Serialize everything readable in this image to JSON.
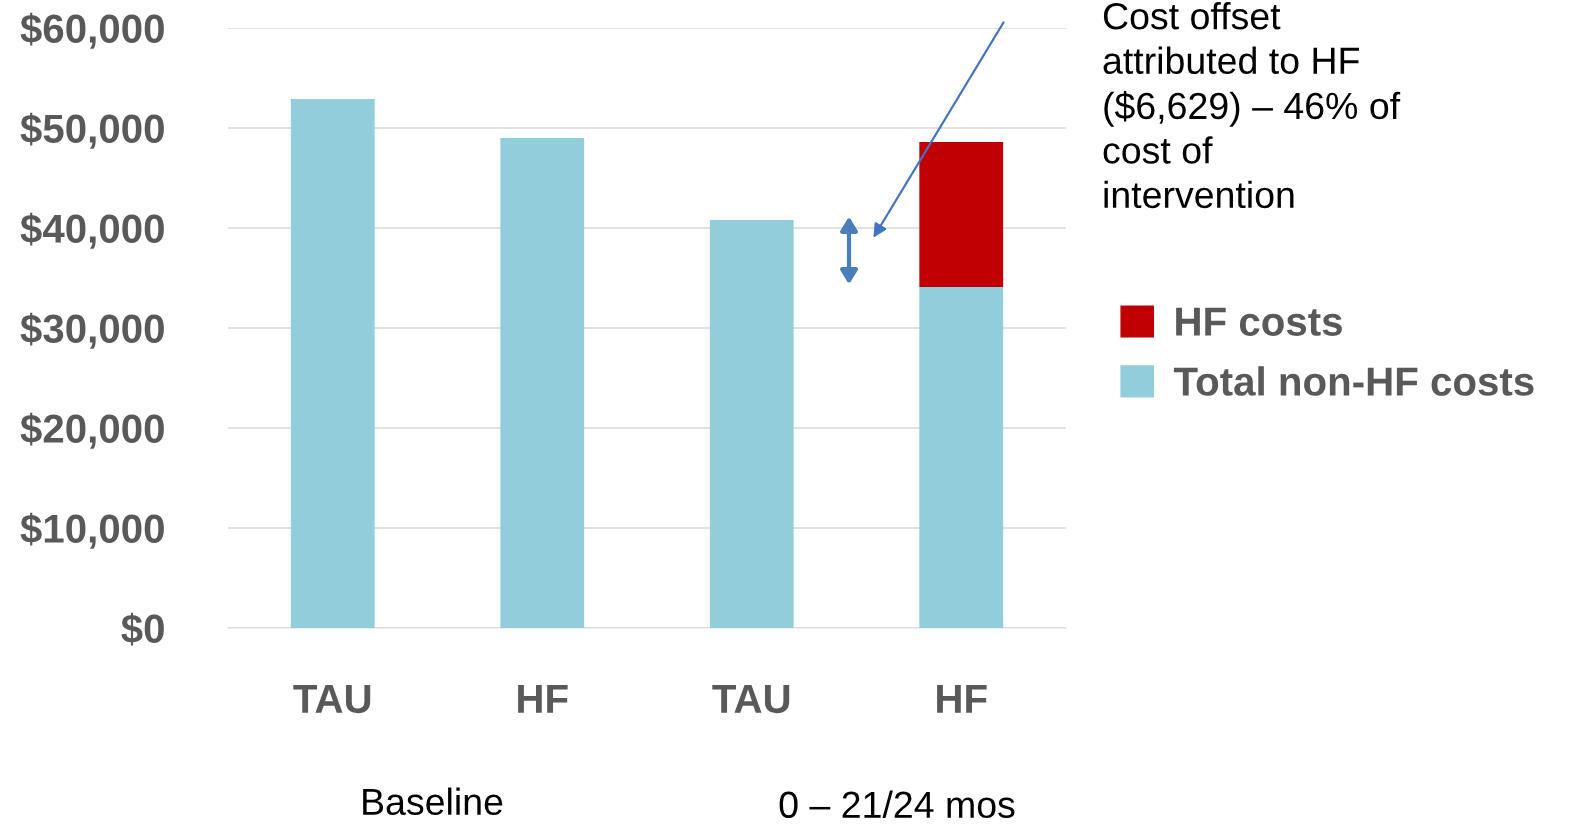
{
  "chart_data": {
    "type": "bar",
    "stacked": true,
    "categories": [
      "TAU",
      "HF",
      "TAU",
      "HF"
    ],
    "series": [
      {
        "name": "Total non-HF costs",
        "color": "#92cddc",
        "values": [
          52900,
          49000,
          40800,
          34100
        ]
      },
      {
        "name": "HF costs",
        "color": "#c00000",
        "values": [
          null,
          null,
          null,
          14500
        ]
      }
    ],
    "ylim": [
      0,
      60000
    ],
    "yticks": [
      {
        "value": 0,
        "label": "$0"
      },
      {
        "value": 10000,
        "label": "$10,000"
      },
      {
        "value": 20000,
        "label": "$20,000"
      },
      {
        "value": 30000,
        "label": "$30,000"
      },
      {
        "value": 40000,
        "label": "$40,000"
      },
      {
        "value": 50000,
        "label": "$50,000"
      },
      {
        "value": 60000,
        "label": "$60,000"
      }
    ],
    "grid": "y",
    "legend": "right",
    "annotations": [
      "Cost offset\nattributed to HF\n($6,629) – 46% of\ncost of\nintervention",
      "Baseline",
      "0 – 21/24 mos"
    ]
  }
}
